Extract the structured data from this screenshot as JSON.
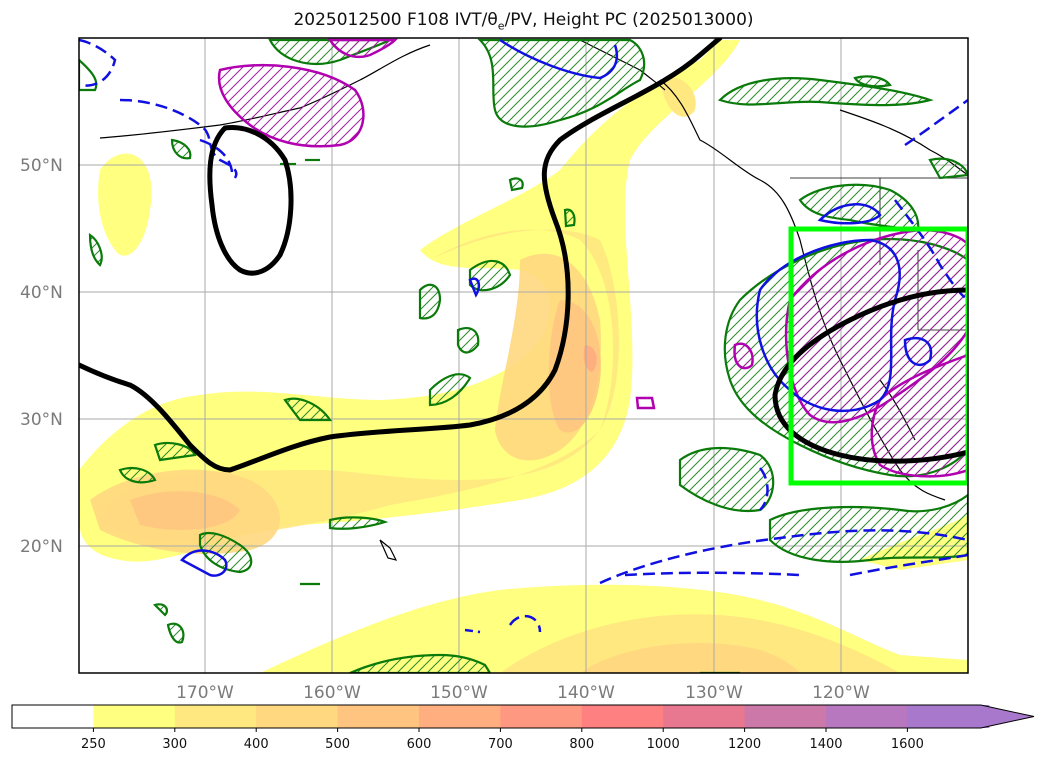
{
  "title": "2025012500 F108 IVT/θe/PV, Height PC (2025013000)",
  "title_parts": {
    "before": "2025012500 F108 IVT/",
    "theta": "θ",
    "sub": "e",
    "after": "/PV, Height PC (2025013000)"
  },
  "map": {
    "lat_labels": [
      "50°N",
      "40°N",
      "30°N",
      "20°N"
    ],
    "lon_labels": [
      "170°W",
      "160°W",
      "150°W",
      "140°W",
      "130°W",
      "120°W"
    ],
    "gridlines": true,
    "highlight_box_color": "#00ff00"
  },
  "colorbar": {
    "ticks": [
      "250",
      "300",
      "400",
      "500",
      "600",
      "700",
      "800",
      "1000",
      "1200",
      "1400",
      "1600"
    ],
    "colors": [
      "#ffffff",
      "#ffff80",
      "#ffe880",
      "#ffd880",
      "#ffc480",
      "#ffae80",
      "#ff9880",
      "#ff8080",
      "#e87890",
      "#cc78a8",
      "#b878c0",
      "#a878cc"
    ],
    "extend": "max"
  }
}
